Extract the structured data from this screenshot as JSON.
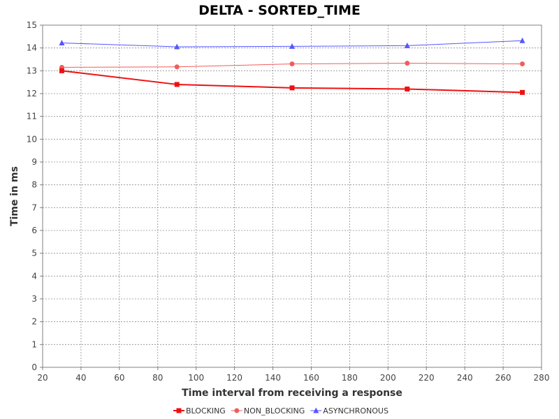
{
  "chart_data": {
    "type": "line",
    "title": "DELTA - SORTED_TIME",
    "xlabel": "Time interval from receiving a response",
    "ylabel": "Time in ms",
    "xlim": [
      20,
      280
    ],
    "ylim": [
      0,
      15
    ],
    "xticks": [
      20,
      40,
      60,
      80,
      100,
      120,
      140,
      160,
      180,
      200,
      220,
      240,
      260,
      280
    ],
    "yticks": [
      0,
      1,
      2,
      3,
      4,
      5,
      6,
      7,
      8,
      9,
      10,
      11,
      12,
      13,
      14,
      15
    ],
    "grid": true,
    "legend_position": "bottom",
    "x": [
      30,
      90,
      150,
      210,
      270
    ],
    "series": [
      {
        "name": "BLOCKING",
        "color": "#ee1111",
        "marker": "square",
        "values": [
          13.0,
          12.4,
          12.25,
          12.2,
          12.05
        ]
      },
      {
        "name": "NON_BLOCKING",
        "color": "#f25c5c",
        "marker": "circle",
        "values": [
          13.15,
          13.17,
          13.3,
          13.33,
          13.3
        ]
      },
      {
        "name": "ASYNCHRONOUS",
        "color": "#5555ff",
        "marker": "triangle",
        "values": [
          14.22,
          14.05,
          14.07,
          14.1,
          14.32
        ]
      }
    ]
  }
}
